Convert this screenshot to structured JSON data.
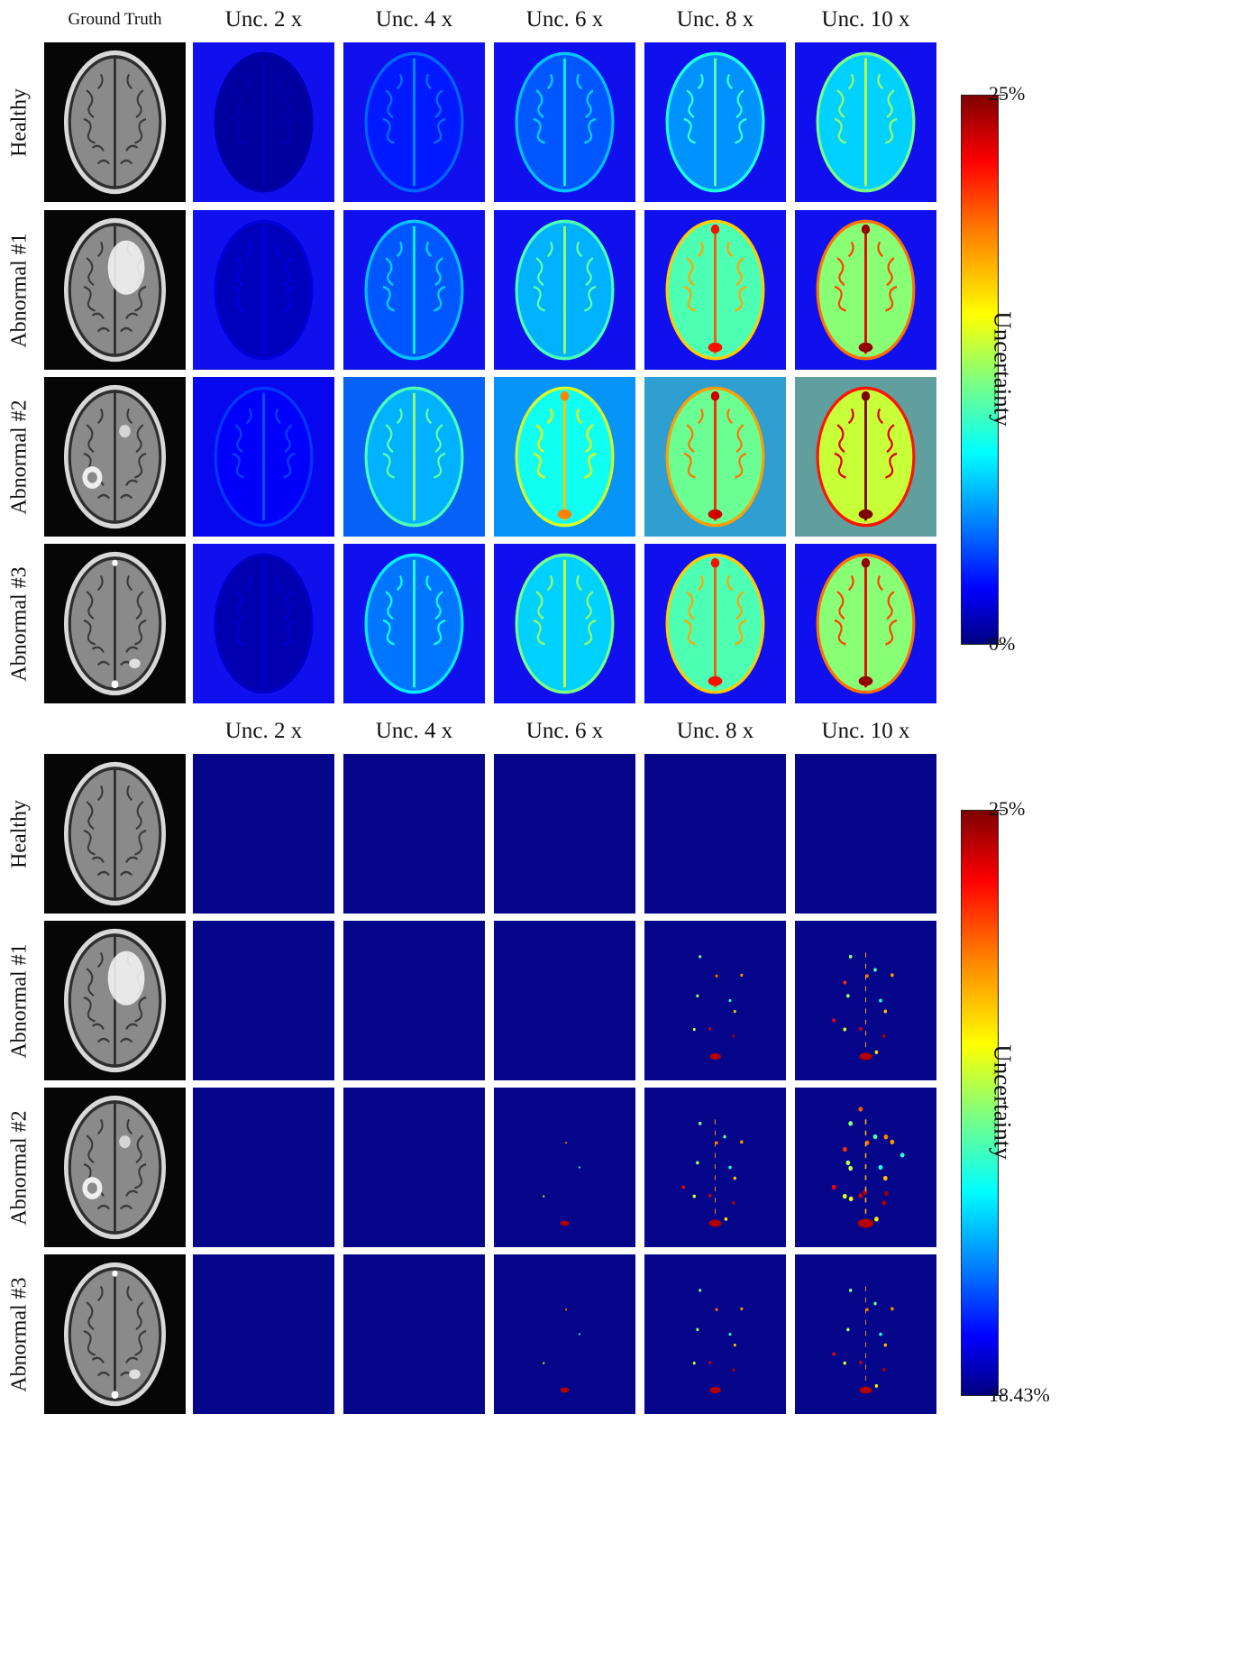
{
  "top": {
    "gt_header": "Ground Truth",
    "col_headers": [
      "Unc. 2 x",
      "Unc. 4 x",
      "Unc. 6 x",
      "Unc. 8 x",
      "Unc. 10 x"
    ],
    "row_labels": [
      "Healthy",
      "Abnormal #1",
      "Abnormal #2",
      "Abnormal #3"
    ],
    "colorbar": {
      "title": "Uncertainty",
      "max_label": "25%",
      "min_label": "0%"
    }
  },
  "bottom": {
    "col_headers": [
      "Unc. 2 x",
      "Unc. 4 x",
      "Unc. 6 x",
      "Unc. 8 x",
      "Unc. 10 x"
    ],
    "row_labels": [
      "Healthy",
      "Abnormal #1",
      "Abnormal #2",
      "Abnormal #3"
    ],
    "colorbar": {
      "title": "Uncertainty",
      "max_label": "25%",
      "min_label": "18.43%"
    }
  },
  "colors": {
    "colormap": [
      "#7f0000",
      "#ff0000",
      "#ff7f00",
      "#ffff00",
      "#7fff7f",
      "#00ffff",
      "#007fff",
      "#0000ff",
      "#00007f"
    ],
    "top_background": "#1010ee",
    "bottom_background": "#06068a"
  },
  "uncertainty_levels": {
    "top": [
      [
        0.05,
        0.25,
        0.35,
        0.45,
        0.55
      ],
      [
        0.1,
        0.35,
        0.5,
        0.75,
        0.85
      ],
      [
        0.2,
        0.5,
        0.65,
        0.8,
        0.95
      ],
      [
        0.08,
        0.4,
        0.55,
        0.75,
        0.85
      ]
    ],
    "bottom": [
      [
        0.0,
        0.0,
        0.0,
        0.0,
        0.0
      ],
      [
        0.0,
        0.0,
        0.0,
        0.25,
        0.4
      ],
      [
        0.0,
        0.0,
        0.05,
        0.35,
        0.65
      ],
      [
        0.0,
        0.0,
        0.05,
        0.25,
        0.35
      ]
    ]
  }
}
